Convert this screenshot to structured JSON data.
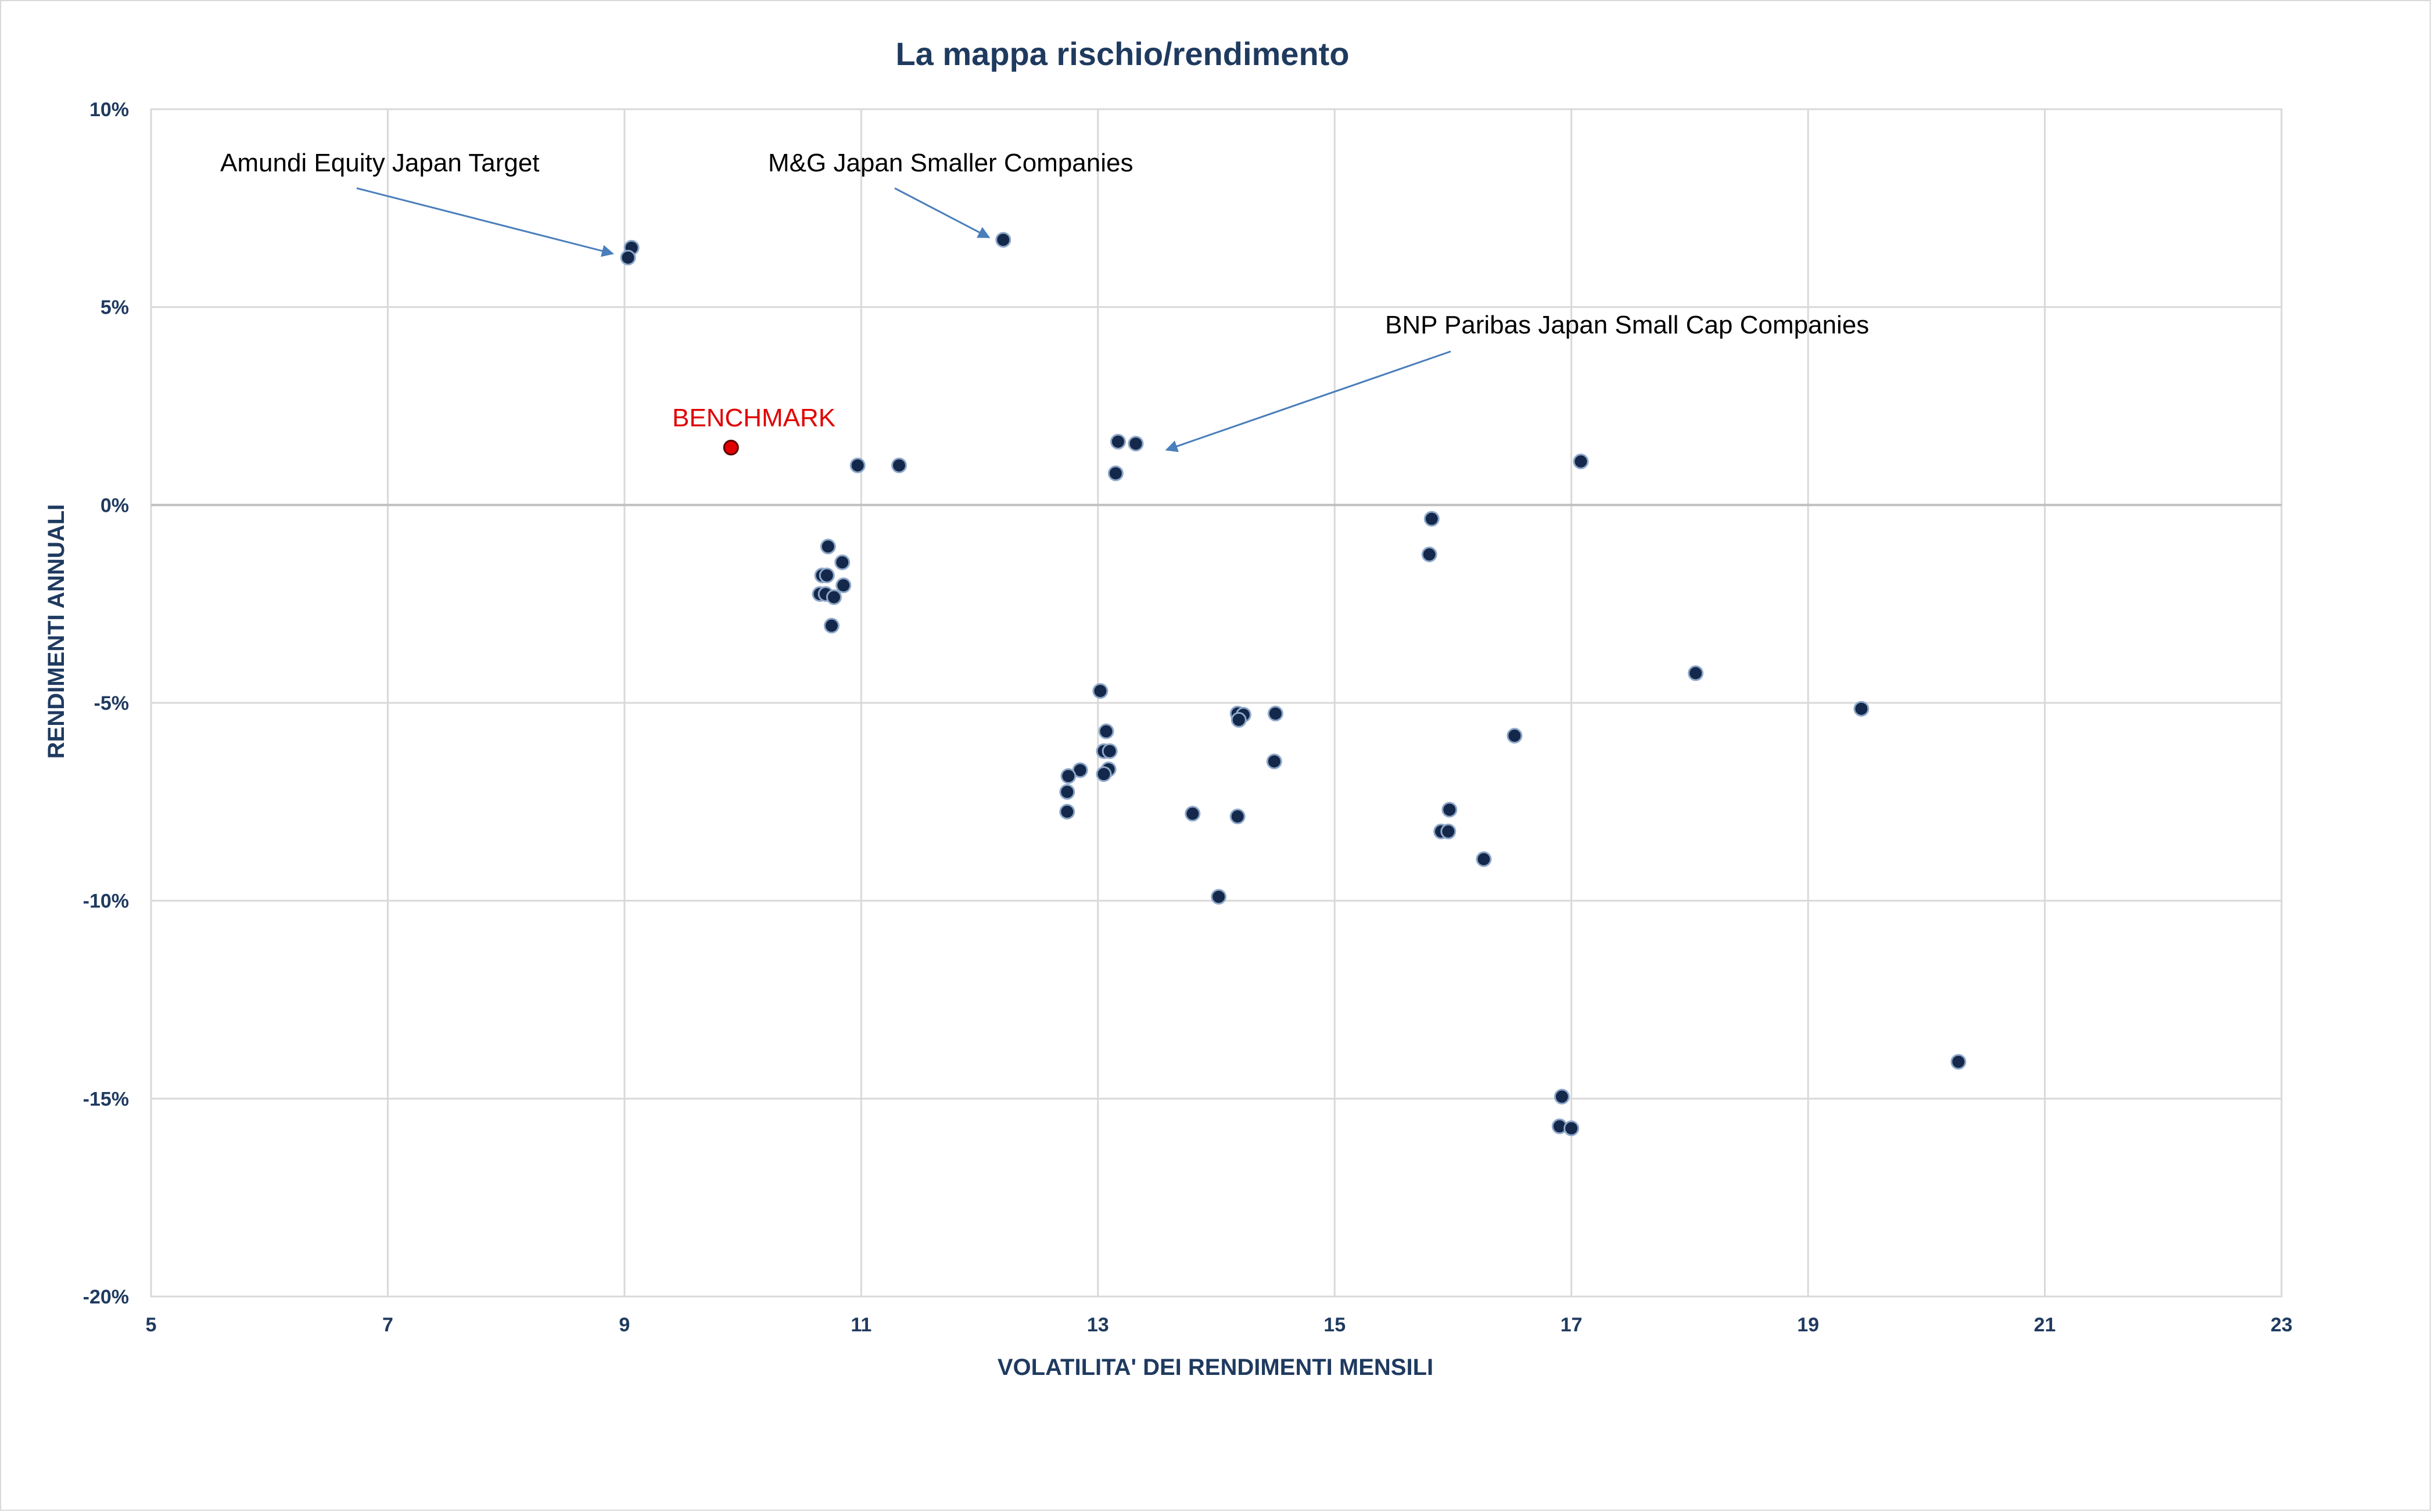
{
  "chart_data": {
    "type": "scatter",
    "title": "La mappa rischio/rendimento",
    "xlabel": "VOLATILITA' DEI RENDIMENTI MENSILI",
    "ylabel": "RENDIMENTI ANNUALI",
    "xlim": [
      5,
      23
    ],
    "ylim": [
      -20,
      10
    ],
    "x_ticks": [
      5,
      7,
      9,
      11,
      13,
      15,
      17,
      19,
      21,
      23
    ],
    "y_ticks": [
      10,
      5,
      0,
      -5,
      -10,
      -15,
      -20
    ],
    "y_tick_labels": [
      "10%",
      "5%",
      "0%",
      "-5%",
      "-10%",
      "-15%",
      "-20%"
    ],
    "grid": true,
    "colors": {
      "point": "#14284b",
      "point_stroke": "#8fa8c8",
      "benchmark": "#e00000",
      "grid": "#d9d9d9",
      "zero_line": "#bfbfbf",
      "arrow": "#4a7ebb",
      "text": "#1f3a5f"
    },
    "series": [
      {
        "points": [
          {
            "x": 9.06,
            "y": 6.5
          },
          {
            "x": 9.03,
            "y": 6.25
          },
          {
            "x": 12.2,
            "y": 6.7
          },
          {
            "x": 10.97,
            "y": 1.0
          },
          {
            "x": 11.32,
            "y": 1.0
          },
          {
            "x": 13.17,
            "y": 1.6
          },
          {
            "x": 13.32,
            "y": 1.55
          },
          {
            "x": 13.15,
            "y": 0.8
          },
          {
            "x": 17.08,
            "y": 1.1
          },
          {
            "x": 15.82,
            "y": -0.35
          },
          {
            "x": 15.8,
            "y": -1.25
          },
          {
            "x": 10.72,
            "y": -1.05
          },
          {
            "x": 10.84,
            "y": -1.45
          },
          {
            "x": 10.67,
            "y": -1.78
          },
          {
            "x": 10.71,
            "y": -1.78
          },
          {
            "x": 10.85,
            "y": -2.03
          },
          {
            "x": 10.65,
            "y": -2.25
          },
          {
            "x": 10.7,
            "y": -2.25
          },
          {
            "x": 10.77,
            "y": -2.33
          },
          {
            "x": 10.75,
            "y": -3.05
          },
          {
            "x": 13.02,
            "y": -4.7
          },
          {
            "x": 13.07,
            "y": -5.72
          },
          {
            "x": 13.05,
            "y": -6.22
          },
          {
            "x": 13.1,
            "y": -6.22
          },
          {
            "x": 13.09,
            "y": -6.68
          },
          {
            "x": 13.05,
            "y": -6.8
          },
          {
            "x": 12.85,
            "y": -6.7
          },
          {
            "x": 12.75,
            "y": -6.85
          },
          {
            "x": 12.74,
            "y": -7.25
          },
          {
            "x": 12.74,
            "y": -7.75
          },
          {
            "x": 13.8,
            "y": -7.8
          },
          {
            "x": 14.18,
            "y": -5.27
          },
          {
            "x": 14.23,
            "y": -5.3
          },
          {
            "x": 14.19,
            "y": -5.43
          },
          {
            "x": 14.5,
            "y": -5.27
          },
          {
            "x": 14.49,
            "y": -6.48
          },
          {
            "x": 14.18,
            "y": -7.87
          },
          {
            "x": 14.02,
            "y": -9.9
          },
          {
            "x": 15.97,
            "y": -7.7
          },
          {
            "x": 15.9,
            "y": -8.25
          },
          {
            "x": 15.96,
            "y": -8.25
          },
          {
            "x": 16.26,
            "y": -8.95
          },
          {
            "x": 16.52,
            "y": -5.83
          },
          {
            "x": 18.05,
            "y": -4.25
          },
          {
            "x": 19.45,
            "y": -5.15
          },
          {
            "x": 20.27,
            "y": -14.07
          },
          {
            "x": 16.92,
            "y": -14.95
          },
          {
            "x": 16.9,
            "y": -15.7
          },
          {
            "x": 17.0,
            "y": -15.75
          }
        ]
      },
      {
        "name": "BENCHMARK",
        "points": [
          {
            "x": 9.9,
            "y": 1.45
          }
        ]
      }
    ],
    "annotations": [
      {
        "text": "Amundi Equity Japan Target",
        "target_x": 9.0,
        "target_y": 6.35
      },
      {
        "text": "M&G Japan Smaller Companies",
        "target_x": 12.15,
        "target_y": 6.7
      },
      {
        "text": "BNP Paribas Japan Small Cap Companies",
        "target_x": 13.5,
        "target_y": 1.45
      },
      {
        "text": "BENCHMARK"
      }
    ]
  }
}
